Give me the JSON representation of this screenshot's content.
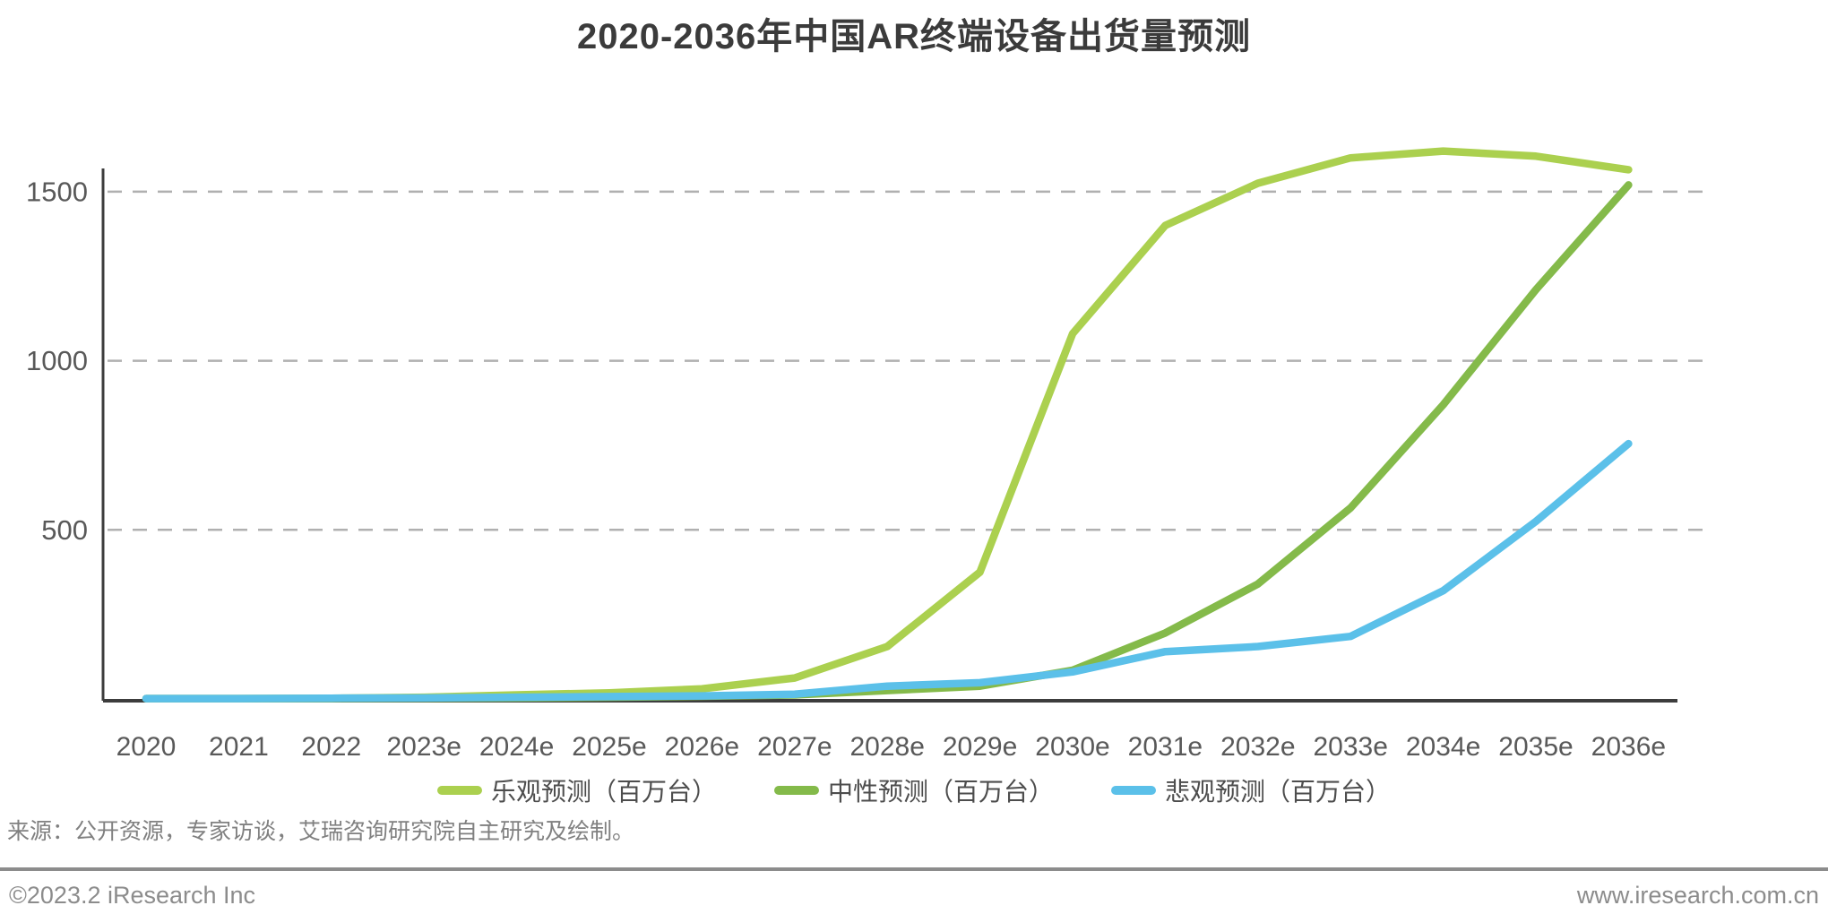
{
  "title": "2020-2036年中国AR终端设备出货量预测",
  "source_note": "来源：公开资源，专家访谈，艾瑞咨询研究院自主研究及绘制。",
  "footer": {
    "left": "©2023.2 iResearch Inc",
    "right": "www.iresearch.com.cn"
  },
  "chart_data": {
    "type": "line",
    "title": "2020-2036年中国AR终端设备出货量预测",
    "unit": "百万台",
    "categories": [
      "2020",
      "2021",
      "2022",
      "2023e",
      "2024e",
      "2025e",
      "2026e",
      "2027e",
      "2028e",
      "2029e",
      "2030e",
      "2031e",
      "2032e",
      "2033e",
      "2034e",
      "2035e",
      "2036e"
    ],
    "series": [
      {
        "key": "optimistic",
        "name": "乐观预测（百万台）",
        "color": "#abd04f",
        "values": [
          1,
          1,
          2,
          5,
          12,
          18,
          30,
          62,
          155,
          375,
          1080,
          1400,
          1525,
          1600,
          1620,
          1605,
          1565
        ]
      },
      {
        "key": "neutral",
        "name": "中性预测（百万台）",
        "color": "#84ba4a",
        "values": [
          1,
          1,
          1,
          2,
          3,
          5,
          8,
          12,
          25,
          38,
          85,
          195,
          340,
          565,
          870,
          1210,
          1520
        ]
      },
      {
        "key": "pessimistic",
        "name": "悲观预测（百万台）",
        "color": "#5bc0e9",
        "values": [
          1,
          1,
          2,
          3,
          5,
          7,
          9,
          14,
          38,
          48,
          80,
          140,
          155,
          185,
          320,
          525,
          755
        ]
      }
    ],
    "xlabel": "",
    "ylabel": "",
    "yticks": [
      500,
      1000,
      1500
    ],
    "ylim": [
      0,
      1700
    ],
    "grid": "horizontal-dashed",
    "legend_position": "bottom",
    "colors": {
      "axis": "#3d3d3d",
      "gridline": "#b0b0b0",
      "tick_label": "#595959",
      "title_text": "#3b3b3b",
      "legend_text": "#4d4d4d",
      "source_text": "#808080",
      "footer_text": "#8c8c8c"
    }
  }
}
